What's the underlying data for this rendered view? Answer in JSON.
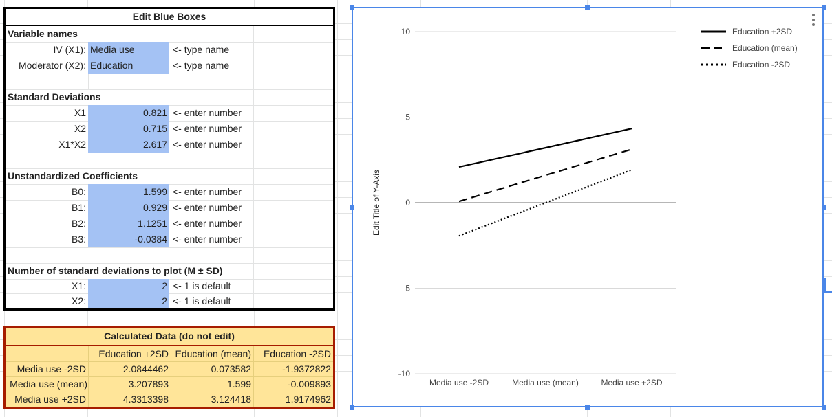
{
  "edit_box": {
    "title": "Edit Blue Boxes",
    "variable_names_heading": "Variable names",
    "iv_label": "IV (X1):",
    "iv_value": "Media use",
    "moderator_label": "Moderator (X2):",
    "moderator_value": "Education",
    "type_name_hint": "<- type name",
    "sd_heading": "Standard Deviations",
    "sd_rows": [
      {
        "label": "X1",
        "value": "0.821",
        "hint": "<- enter number"
      },
      {
        "label": "X2",
        "value": "0.715",
        "hint": "<- enter number"
      },
      {
        "label": "X1*X2",
        "value": "2.617",
        "hint": "<- enter number"
      }
    ],
    "coef_heading": "Unstandardized Coefficients",
    "coef_rows": [
      {
        "label": "B0:",
        "value": "1.599",
        "hint": "<- enter number"
      },
      {
        "label": "B1:",
        "value": "0.929",
        "hint": "<- enter number"
      },
      {
        "label": "B2:",
        "value": "1.1251",
        "hint": "<- enter number"
      },
      {
        "label": "B3:",
        "value": "-0.0384",
        "hint": "<- enter number"
      }
    ],
    "nsd_heading": "Number of standard deviations to plot (M ± SD)",
    "nsd_rows": [
      {
        "label": "X1:",
        "value": "2",
        "hint": "<- 1 is default"
      },
      {
        "label": "X2:",
        "value": "2",
        "hint": "<- 1 is default"
      }
    ]
  },
  "calc_box": {
    "title": "Calculated Data (do not edit)",
    "headers": [
      "Education +2SD",
      "Education (mean)",
      "Education -2SD"
    ],
    "rows": [
      {
        "label": "Media use -2SD",
        "values": [
          "2.0844462",
          "0.073582",
          "-1.9372822"
        ]
      },
      {
        "label": "Media use (mean)",
        "values": [
          "3.207893",
          "1.599",
          "-0.009893"
        ]
      },
      {
        "label": "Media use +2SD",
        "values": [
          "4.3313398",
          "3.124418",
          "1.9174962"
        ]
      }
    ]
  },
  "chart_data": {
    "type": "line",
    "title": "",
    "xlabel": "",
    "ylabel": "Edit Title of Y-Axis",
    "categories": [
      "Media use -2SD",
      "Media use (mean)",
      "Media use +2SD"
    ],
    "y_ticks": [
      "10",
      "5",
      "0",
      "-5",
      "-10"
    ],
    "ylim": [
      -10,
      10
    ],
    "legend_position": "top-right",
    "grid": true,
    "series": [
      {
        "name": "Education +2SD",
        "values": [
          2.0844462,
          3.207893,
          4.3313398
        ],
        "style": "solid",
        "color": "#000000"
      },
      {
        "name": "Education (mean)",
        "values": [
          0.073582,
          1.599,
          3.124418
        ],
        "style": "dashed",
        "color": "#000000"
      },
      {
        "name": "Education -2SD",
        "values": [
          -1.9372822,
          -0.009893,
          1.9174962
        ],
        "style": "dotted",
        "color": "#000000"
      }
    ]
  }
}
